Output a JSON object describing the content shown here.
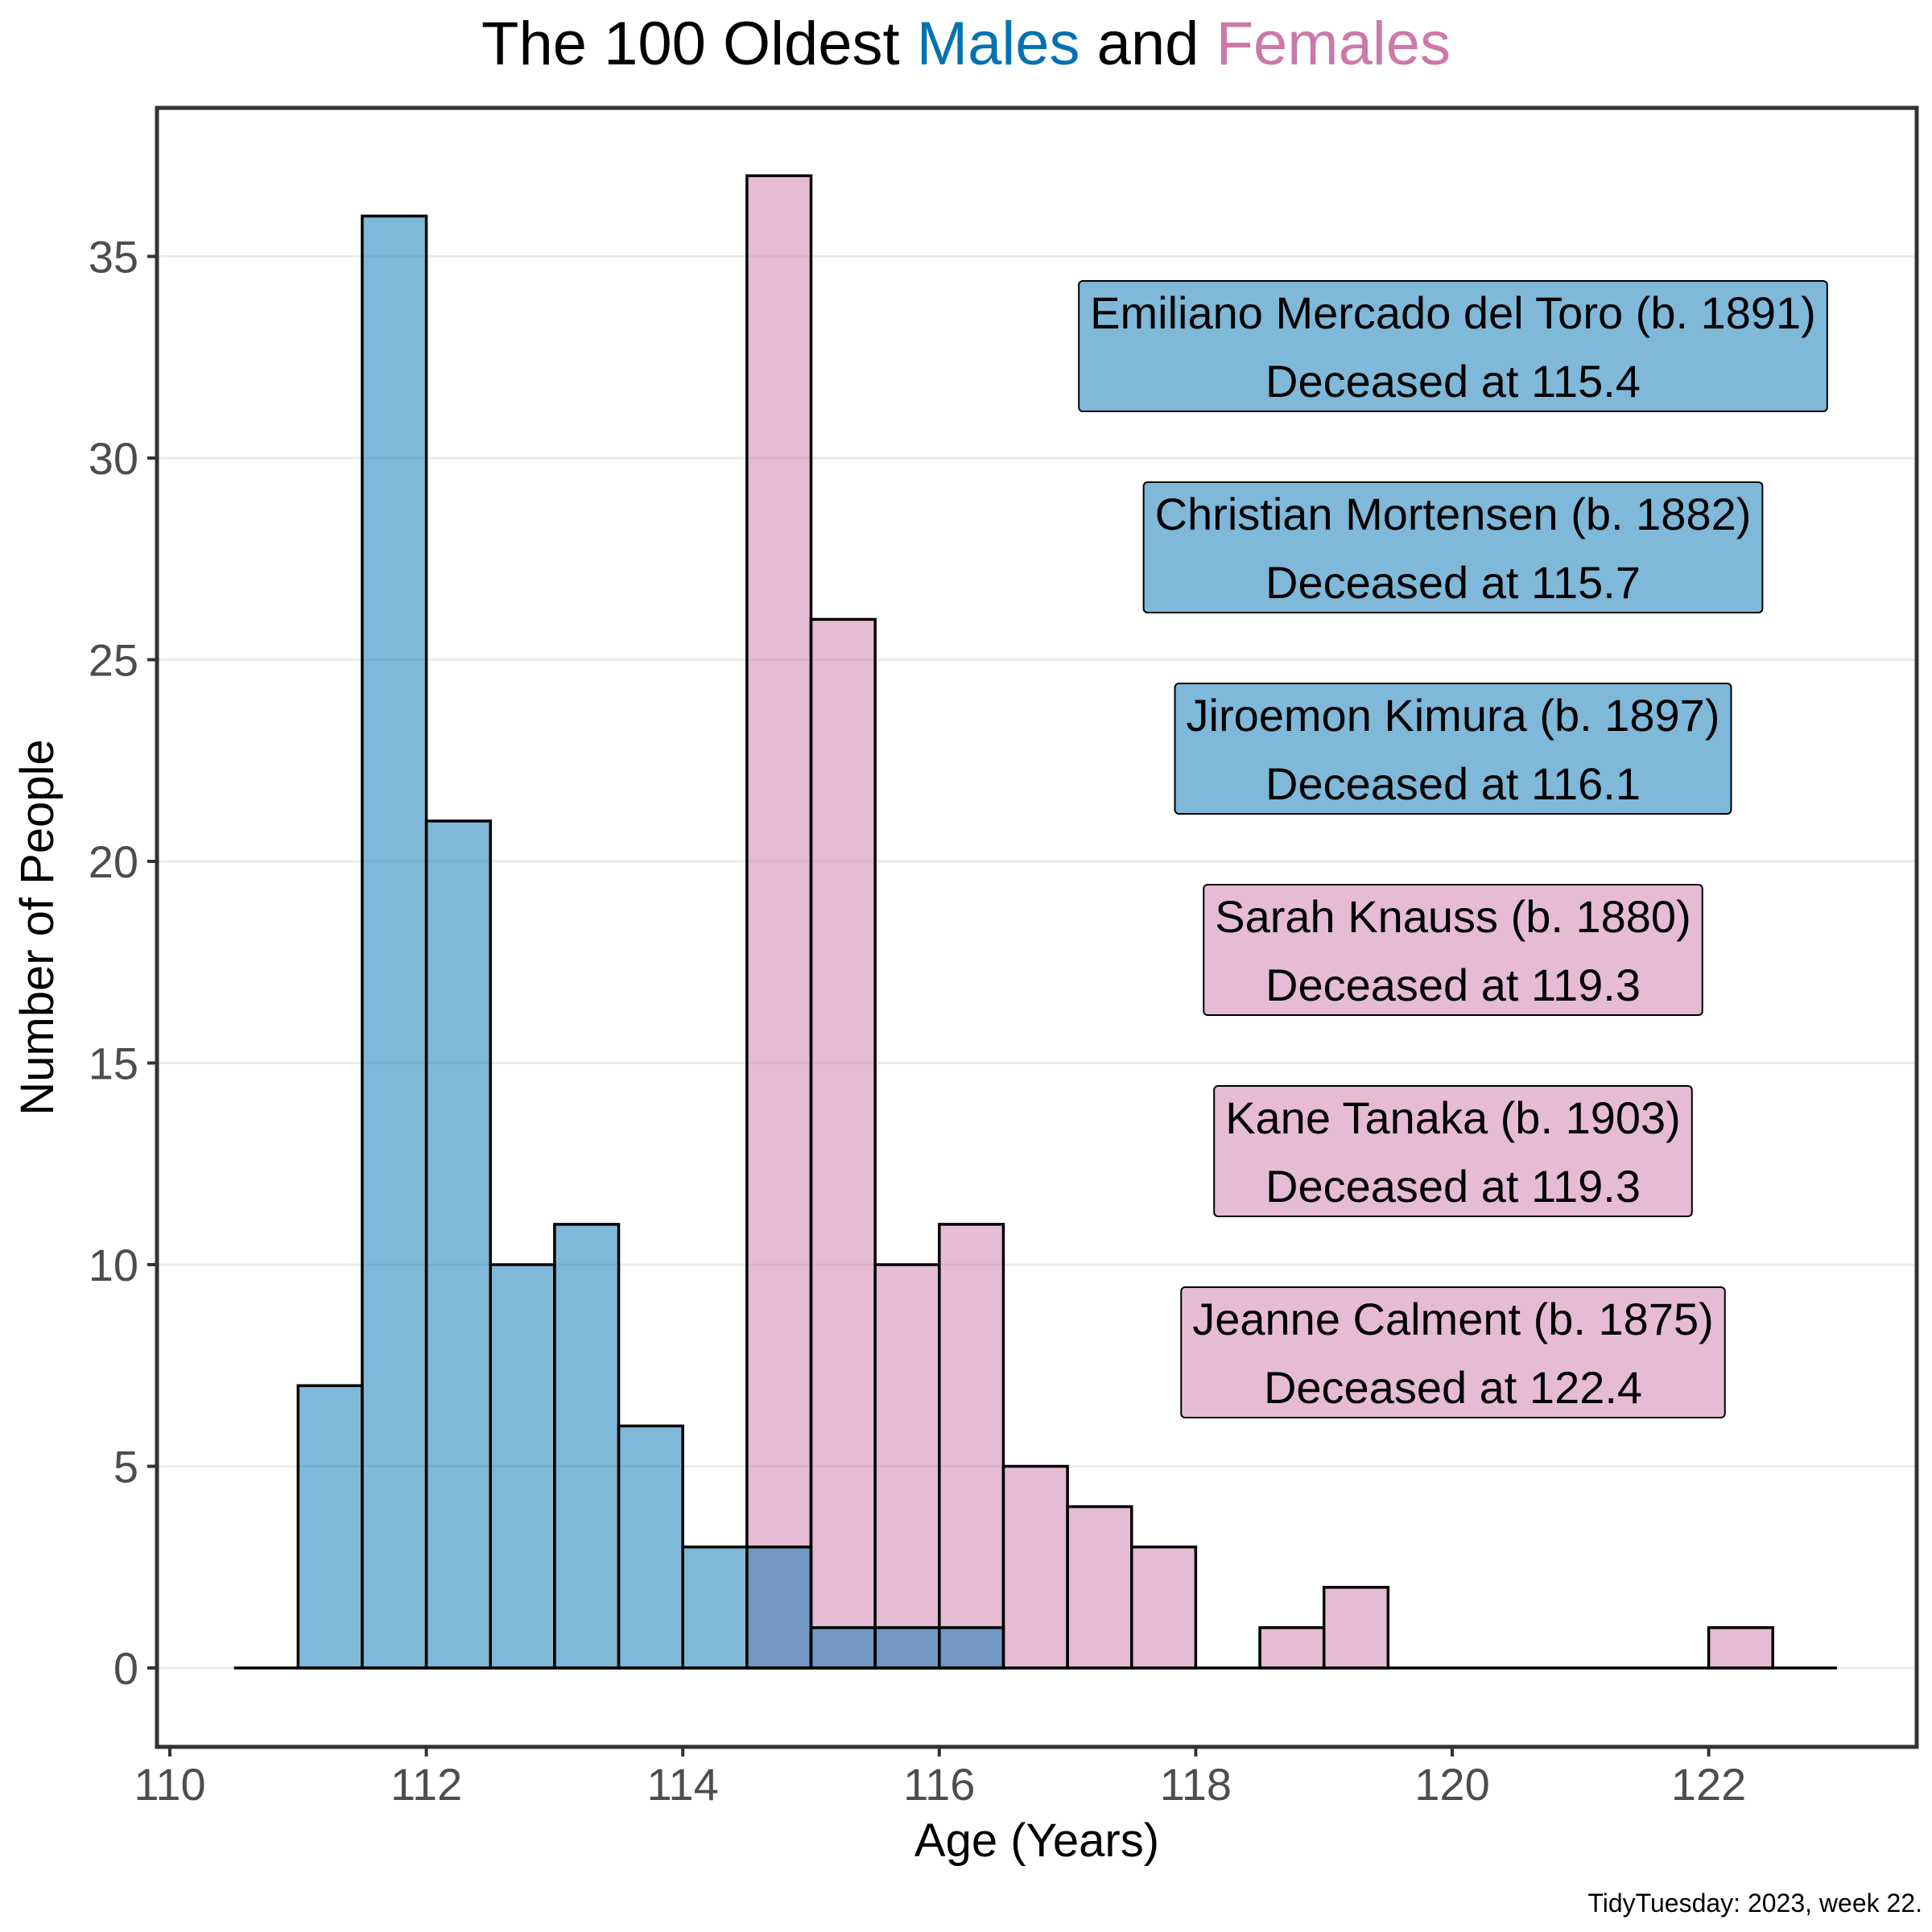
{
  "title": {
    "prefix": "The 100 Oldest ",
    "males": "Males",
    "middle": " and ",
    "females": "Females"
  },
  "caption": "TidyTuesday: 2023, week 22.",
  "colors": {
    "male": "#0072B2",
    "female": "#CC79A7",
    "grid": "#ebebeb",
    "axis_text": "#4d4d4d",
    "panel_border": "#333333"
  },
  "chart_data": {
    "type": "bar",
    "subtype": "overlapping histogram",
    "title": "The 100 Oldest Males and Females",
    "xlabel": "Age (Years)",
    "ylabel": "Number of People",
    "xlim": [
      110,
      123
    ],
    "ylim": [
      0,
      37
    ],
    "x_ticks": [
      110,
      112,
      114,
      116,
      118,
      120,
      122
    ],
    "y_ticks": [
      0,
      5,
      10,
      15,
      20,
      25,
      30,
      35
    ],
    "grid": "horizontal major",
    "bin_width": 0.5,
    "bin_starts": [
      110.5,
      111,
      111.5,
      112,
      112.5,
      113,
      113.5,
      114,
      114.5,
      115,
      115.5,
      116,
      116.5,
      117,
      117.5,
      118,
      118.5,
      119,
      119.5,
      120,
      120.5,
      121,
      121.5,
      122,
      122.5
    ],
    "series": [
      {
        "name": "Males",
        "color": "#0072B2",
        "values": [
          0,
          7,
          36,
          21,
          10,
          11,
          6,
          3,
          3,
          1,
          1,
          1,
          0,
          0,
          0,
          0,
          0,
          0,
          0,
          0,
          0,
          0,
          0,
          0,
          0
        ]
      },
      {
        "name": "Females",
        "color": "#CC79A7",
        "values": [
          0,
          0,
          0,
          0,
          0,
          0,
          0,
          0,
          37,
          26,
          10,
          11,
          5,
          4,
          3,
          0,
          1,
          2,
          0,
          0,
          0,
          0,
          0,
          1,
          0
        ]
      }
    ],
    "annotations": [
      {
        "line1": "Emiliano Mercado del Toro (b. 1891)",
        "line2": "Deceased at 115.4",
        "sex": "male"
      },
      {
        "line1": "Christian Mortensen (b. 1882)",
        "line2": "Deceased at 115.7",
        "sex": "male"
      },
      {
        "line1": "Jiroemon Kimura (b. 1897)",
        "line2": "Deceased at 116.1",
        "sex": "male"
      },
      {
        "line1": "Sarah Knauss (b. 1880)",
        "line2": "Deceased at 119.3",
        "sex": "female"
      },
      {
        "line1": "Kane Tanaka (b. 1903)",
        "line2": "Deceased at 119.3",
        "sex": "female"
      },
      {
        "line1": "Jeanne Calment (b. 1875)",
        "line2": "Deceased at 122.4",
        "sex": "female"
      }
    ]
  }
}
